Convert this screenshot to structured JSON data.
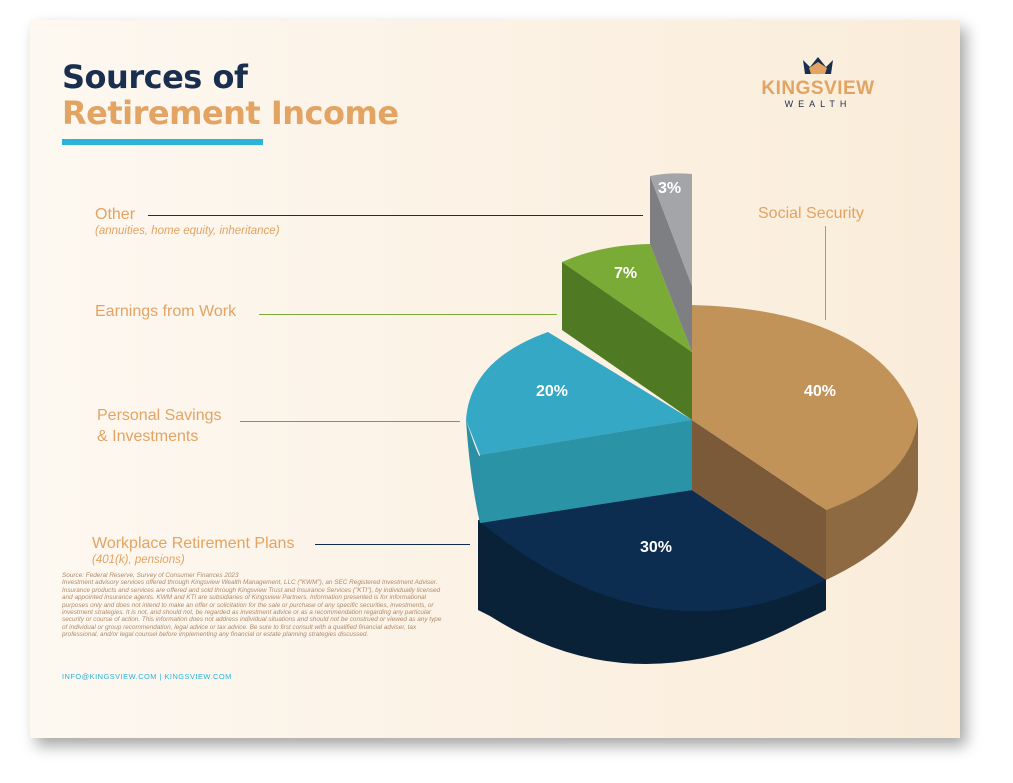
{
  "header": {
    "title_line1": "Sources of",
    "title_line2": "Retirement Income"
  },
  "logo": {
    "name": "KINGSVIEW",
    "sub": "WEALTH",
    "icon": "crown-icon"
  },
  "chart_data": {
    "type": "pie",
    "title": "Sources of Retirement Income",
    "slices": [
      {
        "label": "Social Security",
        "sublabel": "",
        "value": 40,
        "value_label": "40%",
        "color": "#c29359"
      },
      {
        "label": "Workplace Retirement Plans",
        "sublabel": "(401(k), pensions)",
        "value": 30,
        "value_label": "30%",
        "color": "#0c2d4f"
      },
      {
        "label": "Personal Savings & Investments",
        "sublabel": "",
        "value": 20,
        "value_label": "20%",
        "color": "#35a8c6"
      },
      {
        "label": "Earnings from Work",
        "sublabel": "",
        "value": 7,
        "value_label": "7%",
        "color": "#79ab36"
      },
      {
        "label": "Other",
        "sublabel": "(annuities, home equity, inheritance)",
        "value": 3,
        "value_label": "3%",
        "color": "#a3a5a8"
      }
    ]
  },
  "labels": {
    "other": "Other",
    "other_sub": "(annuities, home equity, inheritance)",
    "earnings": "Earnings from Work",
    "savings_line1": "Personal Savings",
    "savings_line2": "& Investments",
    "workplace": "Workplace Retirement Plans",
    "workplace_sub": "(401(k), pensions)",
    "social": "Social Security"
  },
  "footer": {
    "source": "Source: Federal Reserve, Survey of Consumer Finances 2023",
    "disclaimer": "Investment advisory services offered through Kingsview Wealth Management, LLC (\"KWM\"), an SEC Registered Investment Adviser. Insurance products and services are offered and sold through Kingsview Trust and Insurance Services (\"KTI\"), by individually licensed and appointed insurance agents. KWM and KTI are subsidiaries of Kingsview Partners. Information presented is for informational purposes only and does not intend to make an offer or solicitation for the sale or purchase of any specific securities, investments, or investment strategies. It is not, and should not, be regarded as investment advice or as a recommendation regarding any particular security or course of action. This information does not address individual situations and should not be construed or viewed as any type of individual or group recommendation, legal advice or tax advice. Be sure to first consult with a qualified financial adviser, tax professional, and/or legal counsel before implementing any financial or estate planning strategies discussed.",
    "contact": "INFO@KINGSVIEW.COM | KINGSVIEW.COM"
  }
}
